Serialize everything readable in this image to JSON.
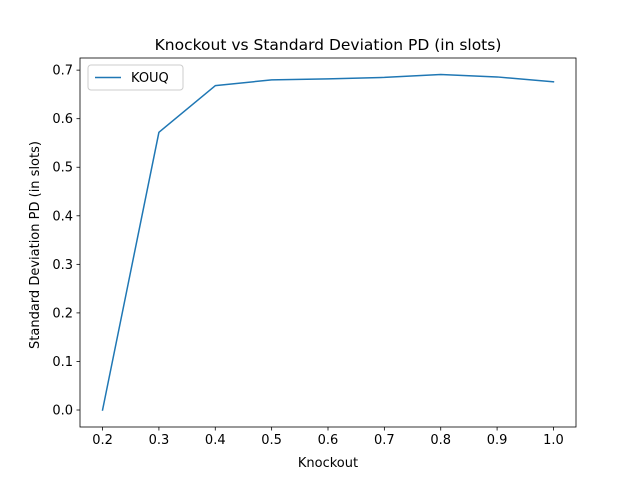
{
  "chart_data": {
    "type": "line",
    "title": "Knockout vs Standard Deviation PD (in slots)",
    "xlabel": "Knockout",
    "ylabel": "Standard Deviation PD (in slots)",
    "xlim": [
      0.16,
      1.04
    ],
    "ylim": [
      -0.035,
      0.725
    ],
    "xticks": [
      0.2,
      0.3,
      0.4,
      0.5,
      0.6,
      0.7,
      0.8,
      0.9,
      1.0
    ],
    "xtick_labels": [
      "0.2",
      "0.3",
      "0.4",
      "0.5",
      "0.6",
      "0.7",
      "0.8",
      "0.9",
      "1.0"
    ],
    "yticks": [
      0.0,
      0.1,
      0.2,
      0.3,
      0.4,
      0.5,
      0.6,
      0.7
    ],
    "ytick_labels": [
      "0.0",
      "0.1",
      "0.2",
      "0.3",
      "0.4",
      "0.5",
      "0.6",
      "0.7"
    ],
    "grid": false,
    "legend_position": "upper-left",
    "x": [
      0.2,
      0.3,
      0.4,
      0.5,
      0.6,
      0.7,
      0.8,
      0.9,
      1.0
    ],
    "series": [
      {
        "name": "KOUQ",
        "color": "#1f77b4",
        "values": [
          0.0,
          0.572,
          0.668,
          0.68,
          0.682,
          0.685,
          0.691,
          0.686,
          0.676
        ]
      }
    ]
  }
}
